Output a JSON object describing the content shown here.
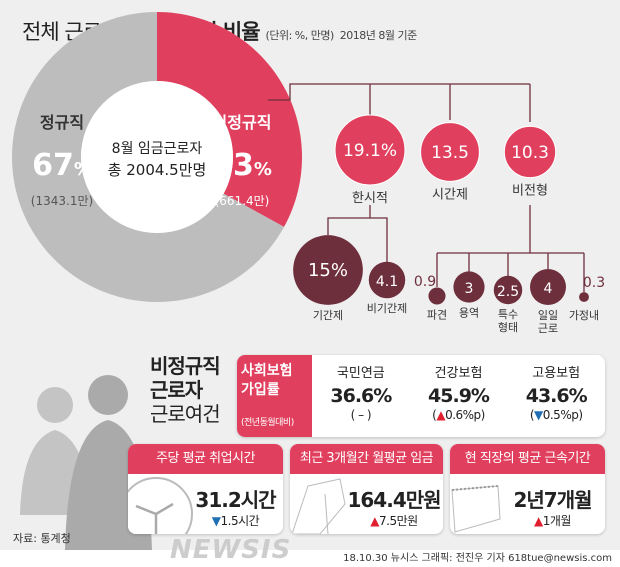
{
  "header": {
    "title_normal": "전체 근로자중",
    "title_bold": "비정규직 비율",
    "unit": "(단위: %, 만명)",
    "date": "2018년 8월 기준"
  },
  "colors": {
    "red": "#e0405e",
    "gray": "#bdbdbd",
    "dark": "#6e2f3d"
  },
  "chart_data": {
    "type": "pie",
    "title": "전체 근로자중 비정규직 비율",
    "center_label": [
      "8월 임금근로자",
      "총 2004.5만명"
    ],
    "slices": [
      {
        "label": "비정규직",
        "pct": "33",
        "pct_value": 33,
        "count": "(661.4만)"
      },
      {
        "label": "정규직",
        "pct": "67",
        "pct_value": 67,
        "count": "(1343.1만)"
      }
    ],
    "breakdown": [
      {
        "label": "한시적",
        "value": 19.1,
        "text": "19.1%",
        "children": [
          {
            "label": "기간제",
            "value": 15,
            "text": "15%"
          },
          {
            "label": "비기간제",
            "value": 4.1,
            "text": "4.1"
          }
        ]
      },
      {
        "label": "시간제",
        "value": 13.5,
        "text": "13.5"
      },
      {
        "label": "비전형",
        "value": 10.3,
        "text": "10.3",
        "children": [
          {
            "label": "파견",
            "value": 0.9,
            "text": "0.9"
          },
          {
            "label": "용역",
            "value": 3,
            "text": "3"
          },
          {
            "label": "특수 형태",
            "value": 2.5,
            "text": "2.5"
          },
          {
            "label": "일일 근로",
            "value": 4,
            "text": "4"
          },
          {
            "label": "가정내",
            "value": 0.3,
            "text": "0.3"
          }
        ]
      }
    ]
  },
  "side_title": {
    "l1": "비정규직",
    "l2": "근로자",
    "l3": "근로여건"
  },
  "insurance": {
    "label1": "사회보험",
    "label2": "가입률",
    "note": "(전년동월대비)",
    "items": [
      {
        "name": "국민연금",
        "value": "36.6%",
        "change": "( – )",
        "dir": ""
      },
      {
        "name": "건강보험",
        "value": "45.9%",
        "change": "0.6%p",
        "dir": "up"
      },
      {
        "name": "고용보험",
        "value": "43.6%",
        "change": "0.5%p",
        "dir": "dn"
      }
    ]
  },
  "cards": [
    {
      "header": "주당 평균 취업시간",
      "value": "31.2시간",
      "change": "1.5시간",
      "dir": "dn",
      "icon": "clock-icon"
    },
    {
      "header": "최근 3개월간 월평균 임금",
      "value": "164.4만원",
      "change": "7.5만원",
      "dir": "up",
      "icon": "envelope-icon"
    },
    {
      "header": "현 직장의 평균 근속기간",
      "value": "2년7개월",
      "change": "1개월",
      "dir": "up",
      "icon": "calendar-icon"
    }
  ],
  "source": "자료: 통계청",
  "watermark": "NEWSIS",
  "footer": "18.10.30 뉴시스 그래픽: 전진우 기자 618tue@newsis.com"
}
